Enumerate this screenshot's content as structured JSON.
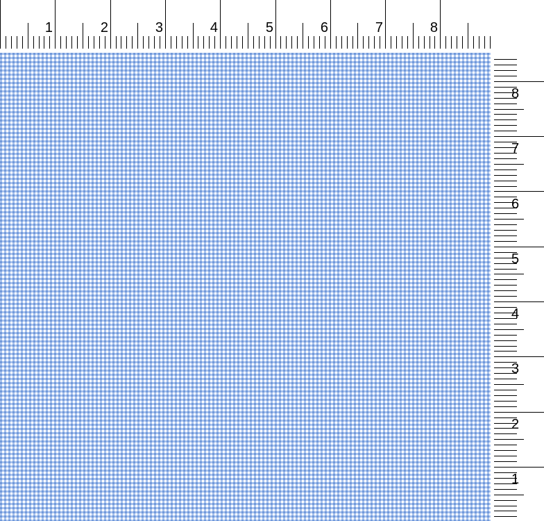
{
  "rulers": {
    "unit_labels": [
      "1",
      "2",
      "3",
      "4",
      "5",
      "6",
      "7",
      "8"
    ],
    "subdivisions_per_unit": 10
  },
  "fabric": {
    "pattern": "gingham",
    "colors": {
      "base": "#ffffff",
      "stripe": "#a9c3ee",
      "cross": "#7199da"
    }
  }
}
